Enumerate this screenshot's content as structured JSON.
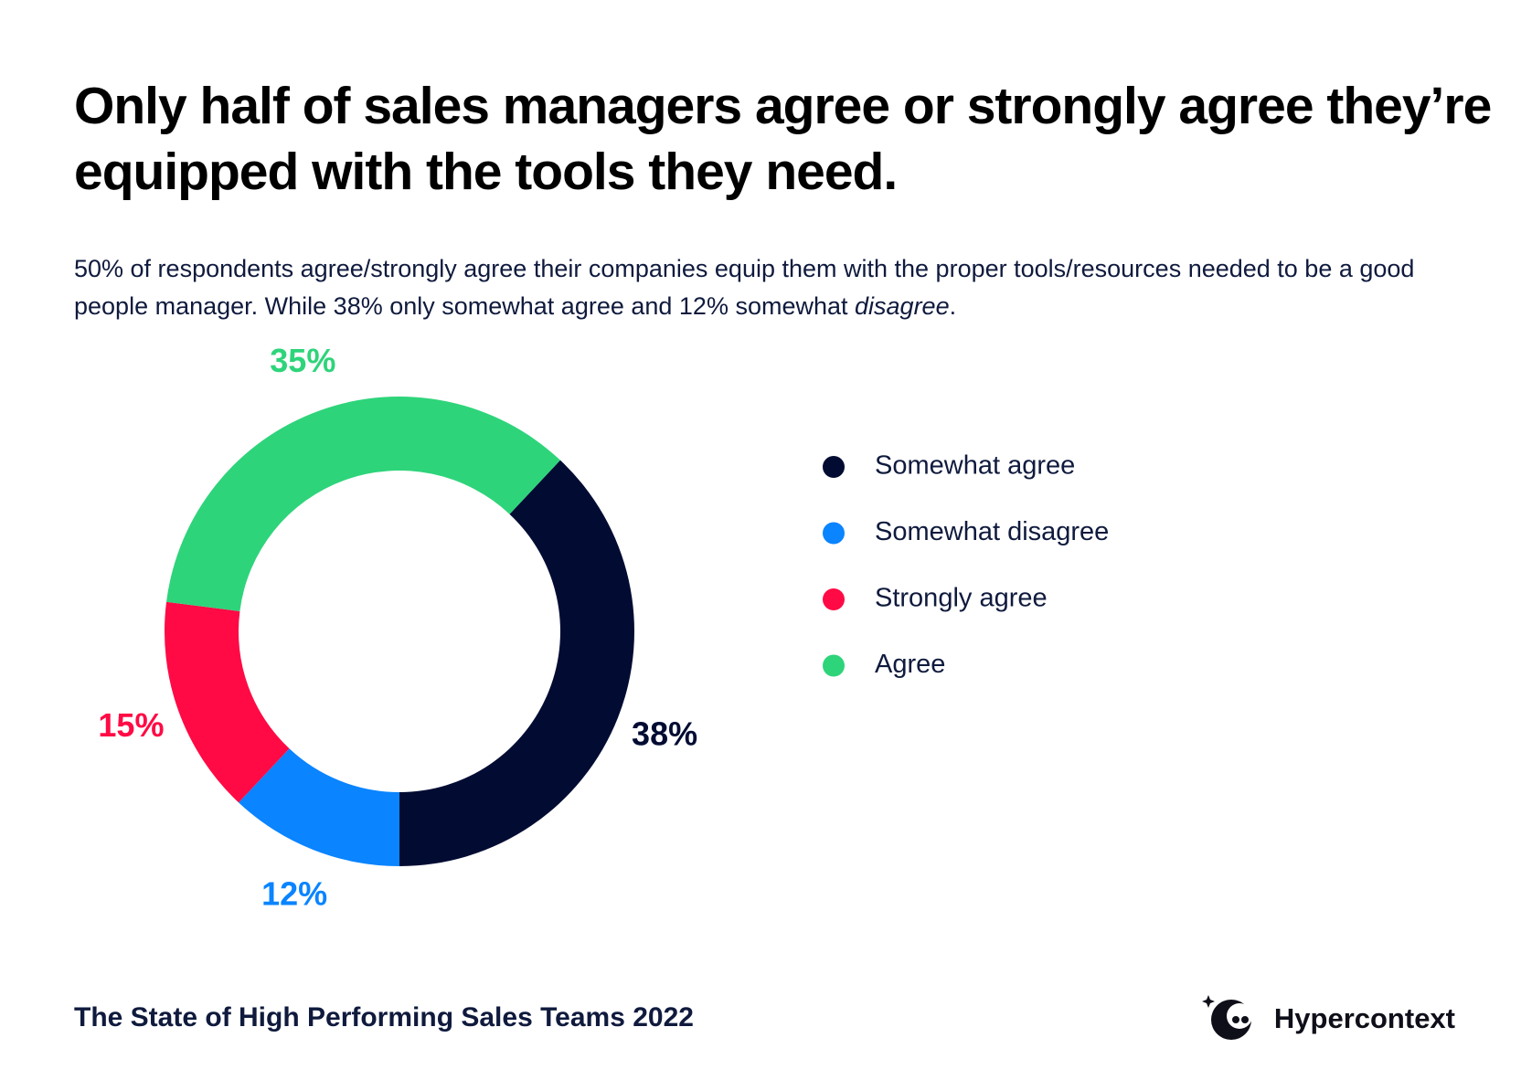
{
  "title": "Only half of sales managers agree or strongly agree they’re equipped with the tools they need.",
  "subtitle": [
    "50% of respondents agree/strongly agree their companies equip them with the proper tools/resources needed to be a good people manager. While 38% only somewhat agree and 12% somewhat ",
    "disagree",
    "."
  ],
  "footer": "The State of High Performing Sales Teams 2022",
  "brand": "Hypercontext",
  "chart_data": {
    "type": "donut",
    "series": [
      {
        "name": "Somewhat agree",
        "color": "#020c33",
        "values": [
          38
        ],
        "value_labels": [
          "38%"
        ]
      },
      {
        "name": "Somewhat disagree",
        "color": "#0a84ff",
        "values": [
          12
        ],
        "value_labels": [
          "12%"
        ]
      },
      {
        "name": "Strongly agree",
        "color": "#ff0a45",
        "values": [
          15
        ],
        "value_labels": [
          "15%"
        ]
      },
      {
        "name": "Agree",
        "color": "#2ed47a",
        "values": [
          35
        ],
        "value_labels": [
          "35%"
        ]
      }
    ],
    "legend": "right"
  }
}
